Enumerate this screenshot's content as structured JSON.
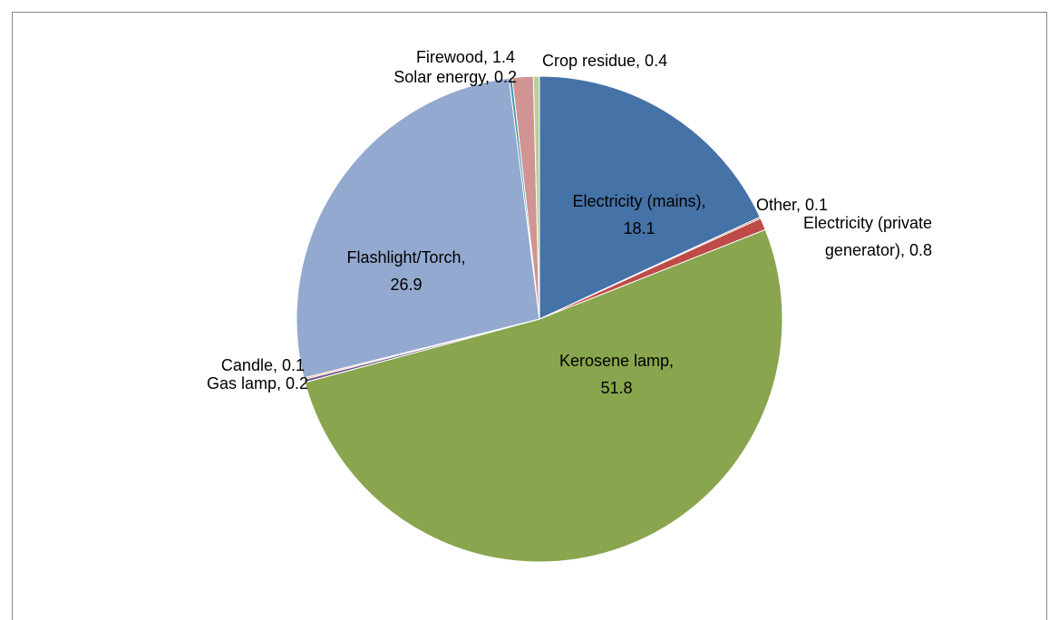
{
  "chart_data": {
    "type": "pie",
    "categories": [
      "Electricity (mains)",
      "Other",
      "Electricity (private generator)",
      "Kerosene lamp",
      "Gas lamp",
      "Candle",
      "Flashlight/Torch",
      "Solar energy",
      "Firewood",
      "Crop residue"
    ],
    "values": [
      18.1,
      0.1,
      0.8,
      51.8,
      0.2,
      0.1,
      26.9,
      0.2,
      1.4,
      0.4
    ],
    "value_labels": [
      "Electricity (mains), 18.1",
      "Other, 0.1",
      "Electricity (private generator), 0.8",
      "Kerosene lamp, 51.8",
      "Gas lamp, 0.2",
      "Candle, 0.1",
      "Flashlight/Torch, 26.9",
      "Solar energy, 0.2",
      "Firewood, 1.4",
      "Crop residue, 0.4"
    ],
    "colors": [
      "#4572a7",
      "#aa4643",
      "#be4b48",
      "#89a54e",
      "#71588f",
      "#f79646",
      "#93a9cf",
      "#4198af",
      "#d09493",
      "#b9cd96"
    ]
  }
}
